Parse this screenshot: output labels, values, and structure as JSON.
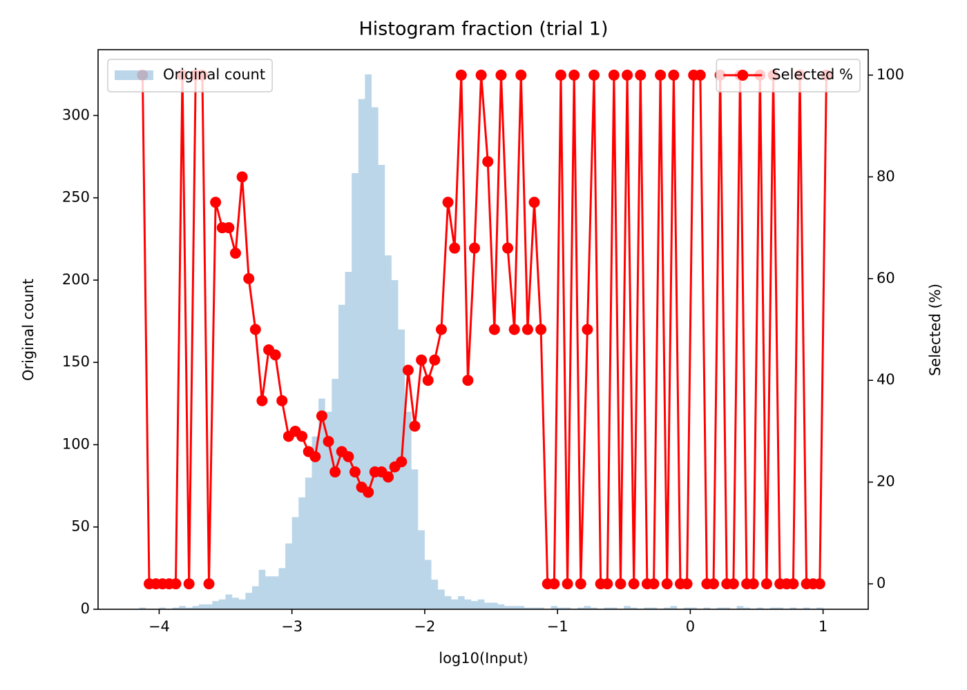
{
  "chart_data": [
    {
      "type": "histogram",
      "title": "Histogram fraction (trial 1)",
      "xlabel": "log10(Input)",
      "ylabel": "Original count",
      "name": "Original count",
      "color": "#1f77b4",
      "alpha": 0.3,
      "legend": "upper left",
      "xlim": [
        -4.46,
        1.34
      ],
      "xticks": [
        {
          "value": -4,
          "label": "−4"
        },
        {
          "value": -3,
          "label": "−3"
        },
        {
          "value": -2,
          "label": "−2"
        },
        {
          "value": -1,
          "label": "−1"
        },
        0,
        1
      ],
      "ylim": [
        0,
        340
      ],
      "yticks": [
        0,
        50,
        100,
        150,
        200,
        250,
        300
      ],
      "bins": [
        -4.15,
        -4.1,
        -4.05,
        -4,
        -3.95,
        -3.9,
        -3.85,
        -3.8,
        -3.75,
        -3.7,
        -3.65,
        -3.6,
        -3.55,
        -3.5,
        -3.45,
        -3.4,
        -3.35,
        -3.3,
        -3.25,
        -3.2,
        -3.15,
        -3.1,
        -3.05,
        -3,
        -2.95,
        -2.9,
        -2.85,
        -2.8,
        -2.75,
        -2.7,
        -2.65,
        -2.6,
        -2.55,
        -2.5,
        -2.45,
        -2.4,
        -2.35,
        -2.3,
        -2.25,
        -2.2,
        -2.15,
        -2.1,
        -2.05,
        -2,
        -1.95,
        -1.9,
        -1.85,
        -1.8,
        -1.75,
        -1.7,
        -1.65,
        -1.6,
        -1.55,
        -1.5,
        -1.45,
        -1.4,
        -1.35,
        -1.3,
        -1.25,
        -1.2,
        -1.15,
        -1.1,
        -1.05,
        -1,
        -0.95,
        -0.9,
        -0.85,
        -0.8,
        -0.75,
        -0.7,
        -0.65,
        -0.6,
        -0.55,
        -0.5,
        -0.45,
        -0.4,
        -0.35,
        -0.3,
        -0.25,
        -0.2,
        -0.15,
        -0.1,
        -0.05,
        0,
        0.05,
        0.1,
        0.15,
        0.2,
        0.25,
        0.3,
        0.35,
        0.4,
        0.45,
        0.5,
        0.55,
        0.6,
        0.65,
        0.7,
        0.75,
        0.8,
        0.85,
        0.9,
        0.95,
        1,
        1.05
      ],
      "counts": [
        1,
        0,
        0,
        1,
        0,
        1,
        2,
        1,
        2,
        3,
        3,
        5,
        6,
        9,
        7,
        6,
        10,
        14,
        24,
        20,
        20,
        25,
        40,
        56,
        68,
        80,
        105,
        128,
        120,
        140,
        185,
        205,
        265,
        310,
        325,
        305,
        270,
        215,
        200,
        170,
        120,
        85,
        48,
        30,
        18,
        12,
        8,
        6,
        8,
        6,
        5,
        6,
        4,
        4,
        3,
        2,
        2,
        2,
        1,
        1,
        1,
        0,
        2,
        1,
        1,
        0,
        1,
        2,
        1,
        0,
        1,
        1,
        0,
        2,
        1,
        0,
        1,
        1,
        0,
        1,
        2,
        0,
        1,
        1,
        0,
        1,
        0,
        1,
        1,
        0,
        2,
        1,
        0,
        1,
        0,
        1,
        1,
        0,
        1,
        0,
        1,
        0,
        1,
        0
      ]
    },
    {
      "type": "line",
      "ylabel": "Selected (%)",
      "legend": "upper right",
      "y2lim": [
        -5,
        105
      ],
      "y2ticks": [
        0,
        20,
        40,
        60,
        80,
        100
      ],
      "series": [
        {
          "name": "Selected %",
          "color": "#ff0000",
          "marker": "o",
          "axis": "y2",
          "x": [
            -4.125,
            -4.075,
            -4.025,
            -3.975,
            -3.925,
            -3.875,
            -3.825,
            -3.775,
            -3.725,
            -3.675,
            -3.625,
            -3.575,
            -3.525,
            -3.475,
            -3.425,
            -3.375,
            -3.325,
            -3.275,
            -3.225,
            -3.175,
            -3.125,
            -3.075,
            -3.025,
            -2.975,
            -2.925,
            -2.875,
            -2.825,
            -2.775,
            -2.725,
            -2.675,
            -2.625,
            -2.575,
            -2.525,
            -2.475,
            -2.425,
            -2.375,
            -2.325,
            -2.275,
            -2.225,
            -2.175,
            -2.125,
            -2.075,
            -2.025,
            -1.975,
            -1.925,
            -1.875,
            -1.825,
            -1.775,
            -1.725,
            -1.675,
            -1.625,
            -1.575,
            -1.525,
            -1.475,
            -1.425,
            -1.375,
            -1.325,
            -1.275,
            -1.225,
            -1.175,
            -1.125,
            -1.075,
            -1.025,
            -0.975,
            -0.925,
            -0.875,
            -0.825,
            -0.775,
            -0.725,
            -0.675,
            -0.625,
            -0.575,
            -0.525,
            -0.475,
            -0.425,
            -0.375,
            -0.325,
            -0.275,
            -0.225,
            -0.175,
            -0.125,
            -0.075,
            -0.025,
            0.025,
            0.075,
            0.125,
            0.175,
            0.225,
            0.275,
            0.325,
            0.375,
            0.425,
            0.475,
            0.525,
            0.575,
            0.625,
            0.675,
            0.725,
            0.775,
            0.825,
            0.875,
            0.925,
            0.975,
            1.025
          ],
          "values": [
            100,
            0,
            0,
            0,
            0,
            0,
            100,
            0,
            100,
            100,
            0,
            75,
            70,
            70,
            65,
            80,
            60,
            50,
            36,
            46,
            45,
            36,
            29,
            30,
            29,
            26,
            25,
            33,
            28,
            22,
            26,
            25,
            22,
            19,
            18,
            22,
            22,
            21,
            23,
            24,
            42,
            31,
            44,
            40,
            44,
            50,
            75,
            66,
            100,
            40,
            66,
            100,
            83,
            50,
            100,
            66,
            50,
            100,
            50,
            75,
            50,
            0,
            0,
            100,
            0,
            100,
            0,
            50,
            100,
            0,
            0,
            100,
            0,
            100,
            0,
            100,
            0,
            0,
            100,
            0,
            100,
            0,
            0,
            100,
            100,
            0,
            0,
            100,
            0,
            0,
            100,
            0,
            0,
            100,
            0,
            100,
            0,
            0,
            0,
            100,
            0,
            0,
            0,
            100
          ]
        }
      ]
    }
  ]
}
